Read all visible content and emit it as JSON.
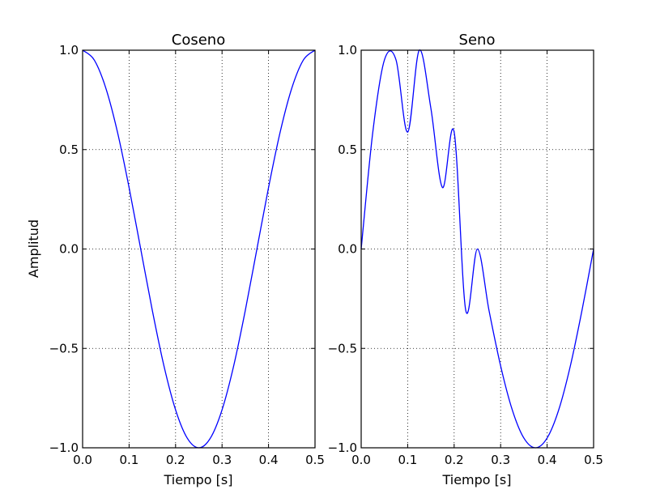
{
  "chart_data": [
    {
      "type": "line",
      "title": "Coseno",
      "xlabel": "Tiempo [s]",
      "ylabel": "Amplitud",
      "xlim": [
        0.0,
        0.5
      ],
      "ylim": [
        -1.0,
        1.0
      ],
      "grid": true,
      "xticks": [
        0.0,
        0.1,
        0.2,
        0.3,
        0.4,
        0.5
      ],
      "xtick_labels": [
        "0.0",
        "0.1",
        "0.2",
        "0.3",
        "0.4",
        "0.5"
      ],
      "yticks": [
        1.0,
        0.5,
        0.0,
        -0.5,
        -1.0
      ],
      "ytick_labels": [
        "1.0",
        "0.5",
        "0.0",
        "−0.5",
        "−1.0"
      ],
      "series": [
        {
          "color": "#0000ff",
          "x": [
            0.0,
            0.025,
            0.05,
            0.075,
            0.1,
            0.125,
            0.15,
            0.175,
            0.2,
            0.225,
            0.25,
            0.275,
            0.3,
            0.325,
            0.35,
            0.375,
            0.4,
            0.425,
            0.45,
            0.475,
            0.5
          ],
          "y": [
            1.0,
            0.951,
            0.809,
            0.588,
            0.309,
            0.0,
            -0.309,
            -0.588,
            -0.809,
            -0.951,
            -1.0,
            -0.951,
            -0.809,
            -0.588,
            -0.309,
            0.0,
            0.309,
            0.588,
            0.809,
            0.951,
            1.0
          ]
        }
      ]
    },
    {
      "type": "line",
      "title": "Seno",
      "xlabel": "Tiempo [s]",
      "ylabel": "",
      "xlim": [
        0.0,
        0.5
      ],
      "ylim": [
        -1.0,
        1.0
      ],
      "grid": true,
      "xticks": [
        0.0,
        0.1,
        0.2,
        0.3,
        0.4,
        0.5
      ],
      "xtick_labels": [
        "0.0",
        "0.1",
        "0.2",
        "0.3",
        "0.4",
        "0.5"
      ],
      "yticks": [
        1.0,
        0.5,
        0.0,
        -0.5,
        -1.0
      ],
      "ytick_labels": [
        "1.0",
        "0.5",
        "0.0",
        "−0.5",
        "−1.0"
      ],
      "series": [
        {
          "color": "#0000ff",
          "x": [
            0.0,
            0.025,
            0.05,
            0.075,
            0.1,
            0.125,
            0.15,
            0.175,
            0.2,
            0.225,
            0.25,
            0.275,
            0.3,
            0.325,
            0.35,
            0.375,
            0.4,
            0.425,
            0.45,
            0.475,
            0.5
          ],
          "y": [
            0.0,
            0.588,
            0.951,
            0.951,
            0.588,
            1.0,
            0.707,
            0.309,
            0.588,
            -0.309,
            0.0,
            -0.309,
            -0.588,
            -0.809,
            -0.951,
            -1.0,
            -0.951,
            -0.809,
            -0.588,
            -0.309,
            0.0
          ]
        }
      ]
    }
  ]
}
